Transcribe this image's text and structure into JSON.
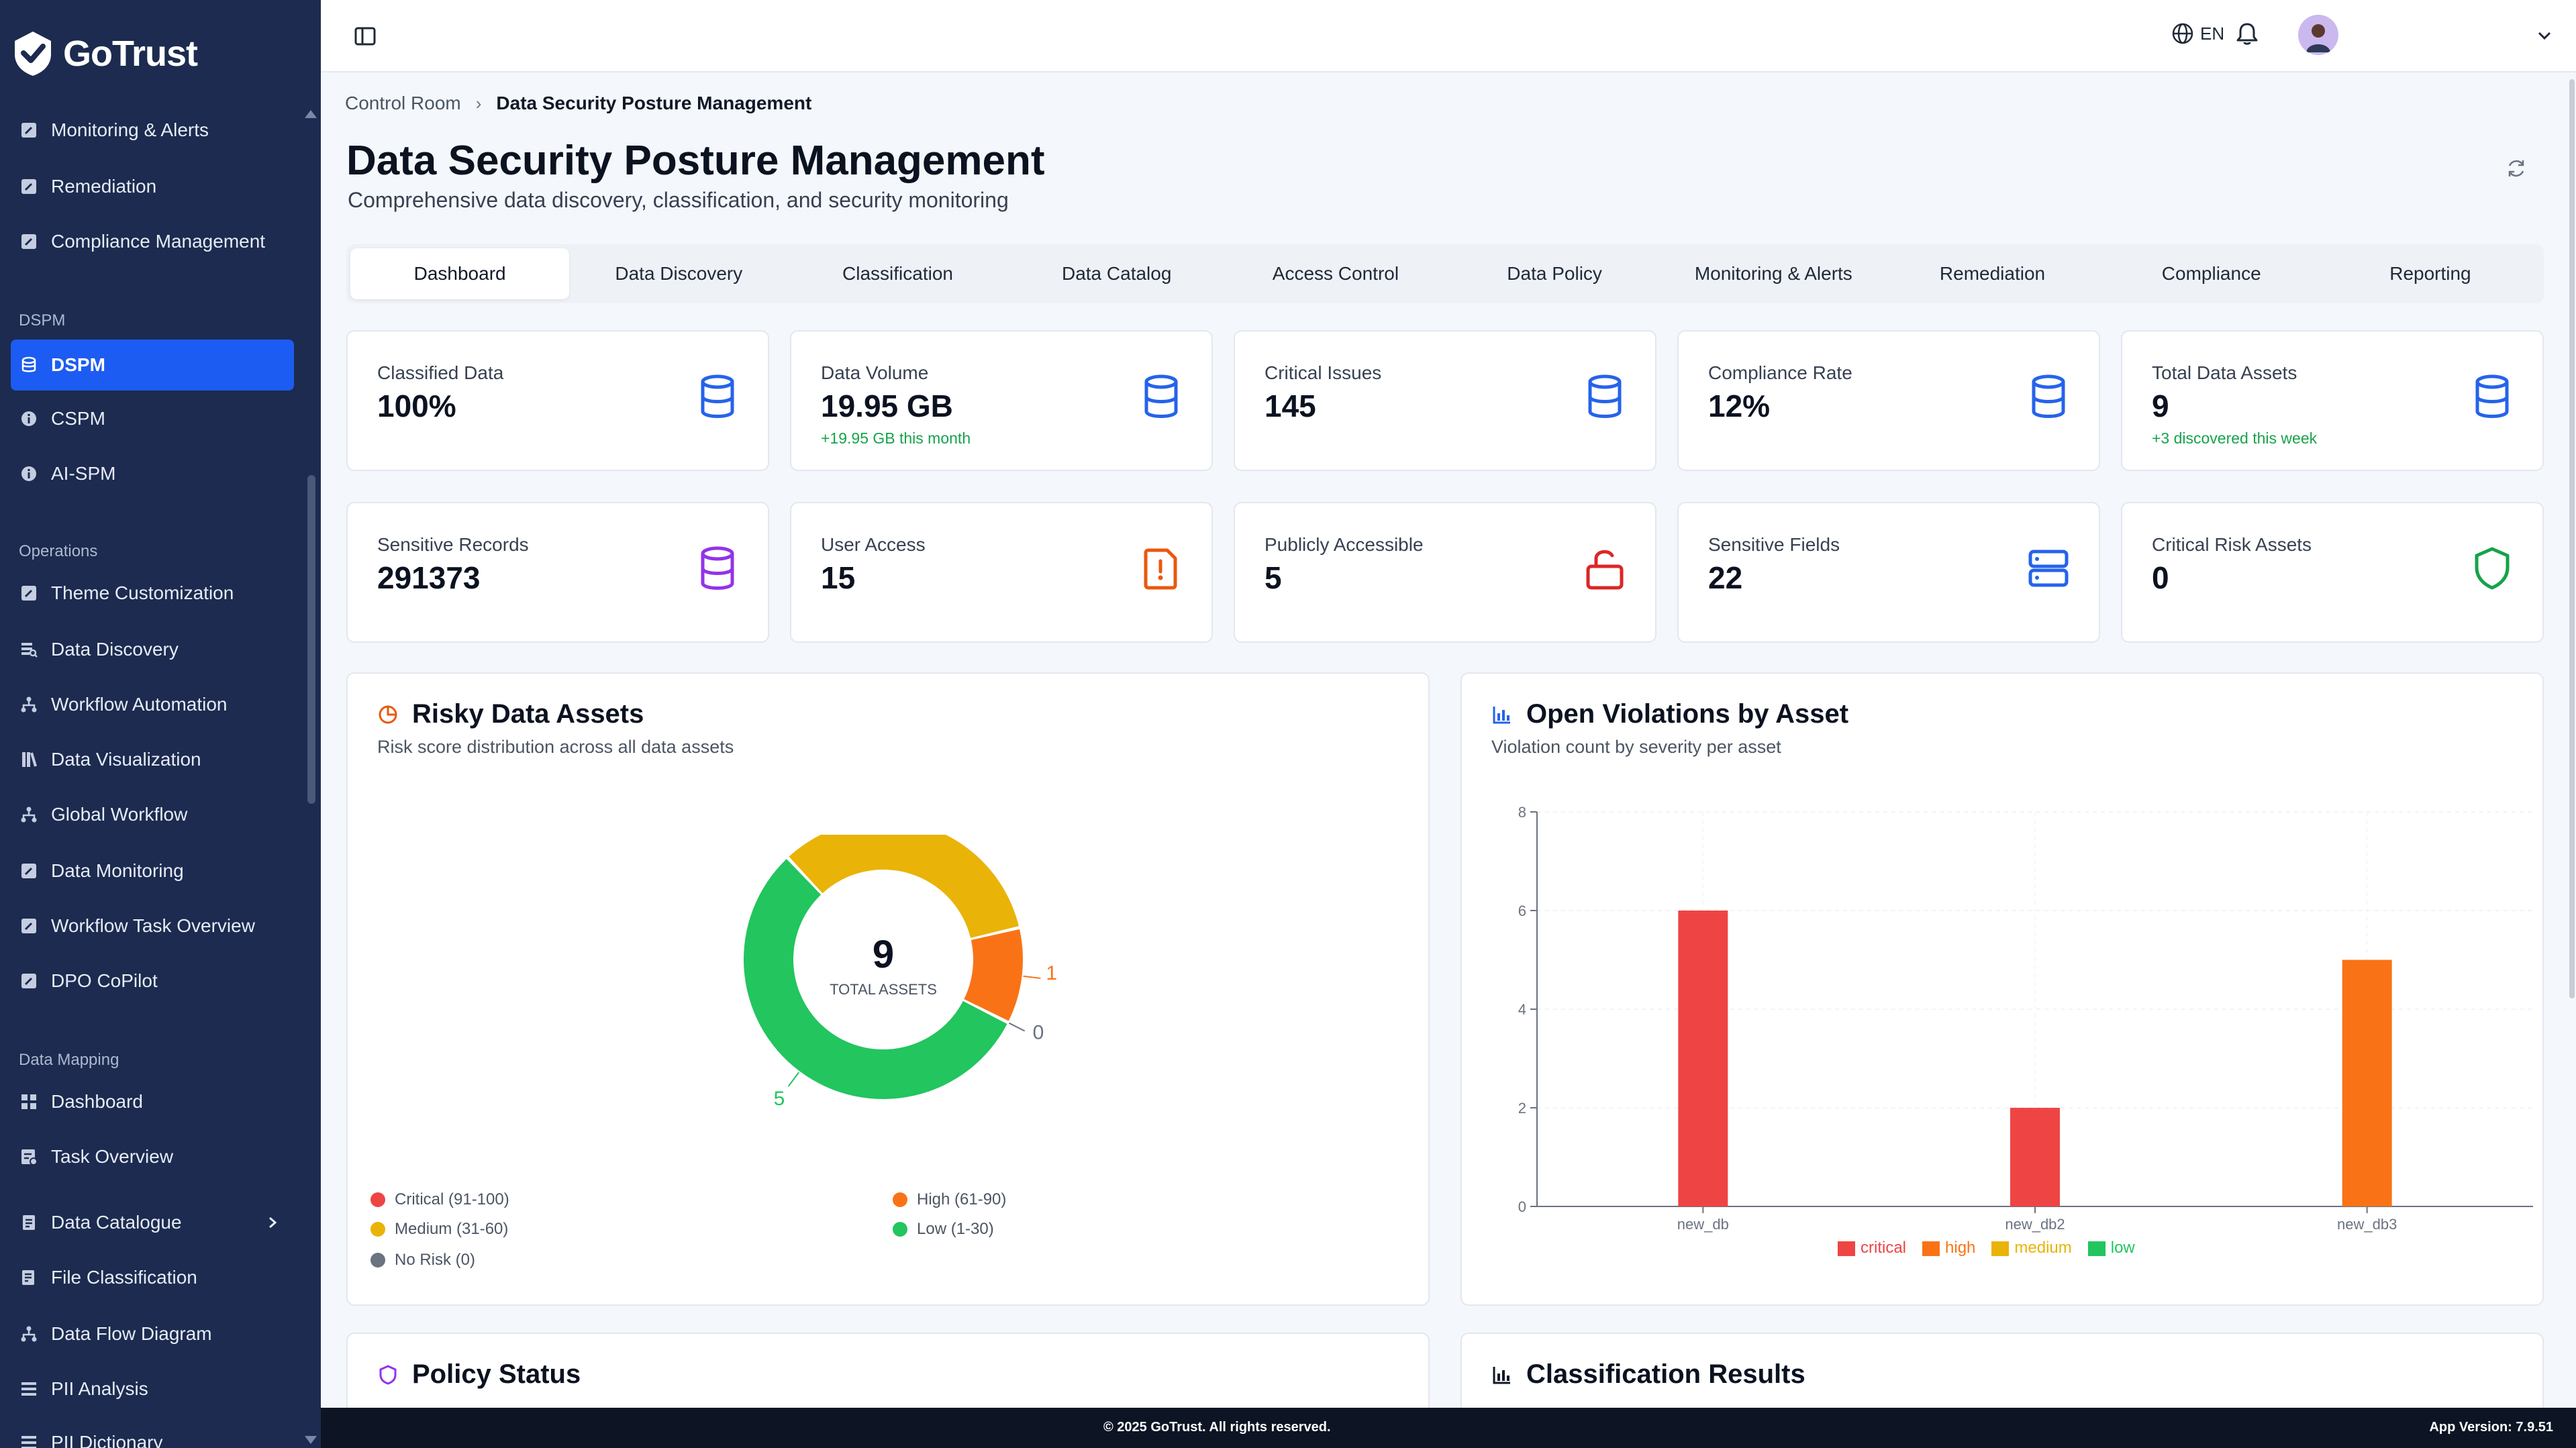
{
  "brand": {
    "name": "GoTrust"
  },
  "colors": {
    "sidebar_bg": "#1c2b4f",
    "accent": "#1d5cf2",
    "critical": "#ef4444",
    "high": "#f97316",
    "medium": "#eab308",
    "low": "#22c55e",
    "no_risk": "#6b7280"
  },
  "sidebar": {
    "top_items": [
      {
        "label": "Monitoring & Alerts",
        "icon": "edit-icon"
      },
      {
        "label": "Remediation",
        "icon": "edit-icon"
      },
      {
        "label": "Compliance Management",
        "icon": "edit-icon"
      }
    ],
    "sections": [
      {
        "title": "DSPM"
      },
      {
        "title": "Operations"
      },
      {
        "title": "Data Mapping"
      }
    ],
    "dspm_items": [
      {
        "label": "DSPM",
        "icon": "database-icon",
        "active": true
      },
      {
        "label": "CSPM",
        "icon": "info-icon"
      },
      {
        "label": "AI-SPM",
        "icon": "info-icon"
      }
    ],
    "operations_items": [
      {
        "label": "Theme Customization",
        "icon": "edit-icon"
      },
      {
        "label": "Data Discovery",
        "icon": "discovery-icon"
      },
      {
        "label": "Workflow Automation",
        "icon": "workflow-icon"
      },
      {
        "label": "Data Visualization",
        "icon": "book-icon"
      },
      {
        "label": "Global Workflow",
        "icon": "workflow-icon"
      },
      {
        "label": "Data Monitoring",
        "icon": "edit-icon"
      },
      {
        "label": "Workflow Task Overview",
        "icon": "edit-icon"
      },
      {
        "label": "DPO CoPilot",
        "icon": "edit-icon"
      }
    ],
    "mapping_items": [
      {
        "label": "Dashboard",
        "icon": "grid-icon"
      },
      {
        "label": "Task Overview",
        "icon": "task-icon"
      },
      {
        "label": "Data Catalogue",
        "icon": "catalogue-icon",
        "expandable": true
      },
      {
        "label": "File Classification",
        "icon": "file-icon"
      },
      {
        "label": "Data Flow Diagram",
        "icon": "flow-icon"
      },
      {
        "label": "PII Analysis",
        "icon": "list-icon"
      },
      {
        "label": "PII Dictionary",
        "icon": "list-icon"
      }
    ]
  },
  "topbar": {
    "language": "EN"
  },
  "breadcrumb": {
    "parent": "Control Room",
    "separator": "›",
    "current": "Data Security Posture Management"
  },
  "page": {
    "title": "Data Security Posture Management",
    "subtitle": "Comprehensive data discovery, classification, and security monitoring"
  },
  "tabs": [
    "Dashboard",
    "Data Discovery",
    "Classification",
    "Data Catalog",
    "Access Control",
    "Data Policy",
    "Monitoring & Alerts",
    "Remediation",
    "Compliance",
    "Reporting"
  ],
  "active_tab": "Dashboard",
  "stats": [
    {
      "label": "Classified Data",
      "value": "100%",
      "delta": "",
      "icon": "database-icon",
      "color": "#2563eb"
    },
    {
      "label": "Data Volume",
      "value": "19.95 GB",
      "delta": "+19.95 GB this month",
      "icon": "database-icon",
      "color": "#2563eb"
    },
    {
      "label": "Critical Issues",
      "value": "145",
      "delta": "",
      "icon": "database-icon",
      "color": "#2563eb"
    },
    {
      "label": "Compliance Rate",
      "value": "12%",
      "delta": "",
      "icon": "database-icon",
      "color": "#2563eb"
    },
    {
      "label": "Total Data Assets",
      "value": "9",
      "delta": "+3 discovered this week",
      "icon": "database-icon",
      "color": "#2563eb"
    },
    {
      "label": "Sensitive Records",
      "value": "291373",
      "delta": "",
      "icon": "database-icon",
      "color": "#9333ea"
    },
    {
      "label": "User Access",
      "value": "15",
      "delta": "",
      "icon": "alert-file-icon",
      "color": "#ea580c"
    },
    {
      "label": "Publicly Accessible",
      "value": "5",
      "delta": "",
      "icon": "unlock-icon",
      "color": "#dc2626"
    },
    {
      "label": "Sensitive Fields",
      "value": "22",
      "delta": "",
      "icon": "server-icon",
      "color": "#2563eb"
    },
    {
      "label": "Critical Risk Assets",
      "value": "0",
      "delta": "",
      "icon": "shield-icon",
      "color": "#16a34a"
    }
  ],
  "risky_assets": {
    "title": "Risky Data Assets",
    "subtitle": "Risk score distribution across all data assets",
    "center_value": "9",
    "center_label": "TOTAL ASSETS",
    "slice_labels": {
      "medium": "3",
      "high": "1",
      "no_risk": "0",
      "low": "5"
    },
    "legend": [
      {
        "label": "Critical (91-100)",
        "color": "#ef4444"
      },
      {
        "label": "High (61-90)",
        "color": "#f97316"
      },
      {
        "label": "Medium (31-60)",
        "color": "#eab308"
      },
      {
        "label": "Low (1-30)",
        "color": "#22c55e"
      },
      {
        "label": "No Risk (0)",
        "color": "#6b7280"
      }
    ]
  },
  "violations": {
    "title": "Open Violations by Asset",
    "subtitle": "Violation count by severity per asset",
    "y_ticks": [
      "0",
      "2",
      "4",
      "6",
      "8"
    ],
    "legend": [
      {
        "label": "critical",
        "color": "#ef4444"
      },
      {
        "label": "high",
        "color": "#f97316"
      },
      {
        "label": "medium",
        "color": "#eab308"
      },
      {
        "label": "low",
        "color": "#22c55e"
      }
    ]
  },
  "chart_data": [
    {
      "type": "pie",
      "title": "Risky Data Assets",
      "categories": [
        "Critical (91-100)",
        "High (61-90)",
        "Medium (31-60)",
        "Low (1-30)",
        "No Risk (0)"
      ],
      "values": [
        0,
        1,
        3,
        5,
        0
      ],
      "donut": true,
      "center_text": "9 TOTAL ASSETS",
      "legend": "bottom"
    },
    {
      "type": "bar",
      "title": "Open Violations by Asset",
      "categories": [
        "new_db",
        "new_db2",
        "new_db3"
      ],
      "series": [
        {
          "name": "critical",
          "values": [
            6,
            2,
            0
          ]
        },
        {
          "name": "high",
          "values": [
            0,
            0,
            5
          ]
        },
        {
          "name": "medium",
          "values": [
            0,
            0,
            0
          ]
        },
        {
          "name": "low",
          "values": [
            0,
            0,
            0
          ]
        }
      ],
      "ylim": [
        0,
        8
      ],
      "grid": true,
      "legend": "bottom"
    }
  ],
  "bottom_panels": {
    "policy_title": "Policy Status",
    "classification_title": "Classification Results"
  },
  "footer": {
    "copyright": "© 2025 GoTrust. All rights reserved.",
    "version": "App Version: 7.9.51"
  }
}
